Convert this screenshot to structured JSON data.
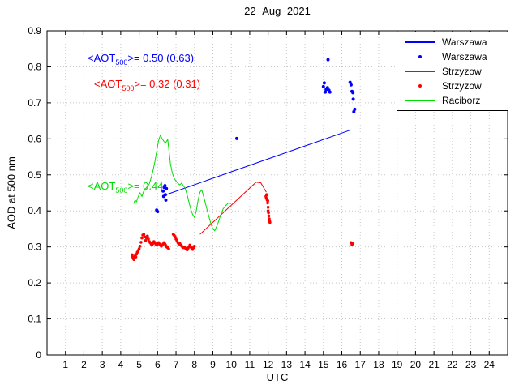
{
  "chart_data": {
    "type": "line+scatter",
    "title": "22−Aug−2021",
    "xlabel": "UTC",
    "ylabel": "AOD at 500 nm",
    "xlim": [
      0,
      25
    ],
    "ylim": [
      0,
      0.9
    ],
    "xticks": [
      1,
      2,
      3,
      4,
      5,
      6,
      7,
      8,
      9,
      10,
      11,
      12,
      13,
      14,
      15,
      16,
      17,
      18,
      19,
      20,
      21,
      22,
      23,
      24
    ],
    "yticks": [
      0,
      0.1,
      0.2,
      0.3,
      0.4,
      0.5,
      0.6,
      0.7,
      0.8,
      0.9
    ],
    "ytick_labels": [
      "0",
      "0.1",
      "0.2",
      "0.3",
      "0.4",
      "0.5",
      "0.6",
      "0.7",
      "0.8",
      "0.9"
    ],
    "grid": true,
    "grid_color": "#c8c8c8",
    "axis_color": "#000000",
    "legend_position": "top-right",
    "series": [
      {
        "name": "Warszawa (fit line)",
        "type": "line",
        "color": "#0000ff",
        "points": [
          [
            6.35,
            0.443
          ],
          [
            16.5,
            0.625
          ]
        ]
      },
      {
        "name": "Warszawa (measurements)",
        "type": "scatter",
        "color": "#0000ff",
        "marker_size": 2,
        "points": [
          [
            5.95,
            0.402
          ],
          [
            6.0,
            0.398
          ],
          [
            6.3,
            0.455
          ],
          [
            6.33,
            0.44
          ],
          [
            6.36,
            0.465
          ],
          [
            6.4,
            0.47
          ],
          [
            6.42,
            0.445
          ],
          [
            6.45,
            0.43
          ],
          [
            6.48,
            0.462
          ],
          [
            10.3,
            0.601
          ],
          [
            15.0,
            0.745
          ],
          [
            15.05,
            0.755
          ],
          [
            15.1,
            0.73
          ],
          [
            15.15,
            0.737
          ],
          [
            15.22,
            0.742
          ],
          [
            15.25,
            0.82
          ],
          [
            15.3,
            0.735
          ],
          [
            15.35,
            0.73
          ],
          [
            16.45,
            0.757
          ],
          [
            16.5,
            0.75
          ],
          [
            16.55,
            0.732
          ],
          [
            16.6,
            0.728
          ],
          [
            16.62,
            0.71
          ],
          [
            16.65,
            0.675
          ],
          [
            16.7,
            0.682
          ]
        ]
      },
      {
        "name": "Strzyzow (line)",
        "type": "line",
        "color": "#ff0000",
        "points": [
          [
            8.3,
            0.335
          ],
          [
            11.35,
            0.48
          ],
          [
            11.6,
            0.478
          ],
          [
            11.9,
            0.452
          ]
        ]
      },
      {
        "name": "Strzyzow (measurements)",
        "type": "scatter",
        "color": "#ff0000",
        "marker_size": 1.8,
        "points": [
          [
            4.62,
            0.278
          ],
          [
            4.65,
            0.272
          ],
          [
            4.68,
            0.268
          ],
          [
            4.72,
            0.265
          ],
          [
            4.75,
            0.27
          ],
          [
            4.78,
            0.275
          ],
          [
            4.82,
            0.272
          ],
          [
            4.86,
            0.28
          ],
          [
            4.9,
            0.285
          ],
          [
            4.95,
            0.29
          ],
          [
            5.0,
            0.295
          ],
          [
            5.05,
            0.302
          ],
          [
            5.1,
            0.313
          ],
          [
            5.15,
            0.325
          ],
          [
            5.2,
            0.333
          ],
          [
            5.25,
            0.335
          ],
          [
            5.3,
            0.328
          ],
          [
            5.35,
            0.318
          ],
          [
            5.4,
            0.325
          ],
          [
            5.45,
            0.33
          ],
          [
            5.5,
            0.322
          ],
          [
            5.55,
            0.315
          ],
          [
            5.6,
            0.312
          ],
          [
            5.65,
            0.308
          ],
          [
            5.7,
            0.305
          ],
          [
            5.75,
            0.31
          ],
          [
            5.8,
            0.315
          ],
          [
            5.85,
            0.312
          ],
          [
            5.9,
            0.308
          ],
          [
            5.95,
            0.305
          ],
          [
            6.0,
            0.308
          ],
          [
            6.05,
            0.312
          ],
          [
            6.1,
            0.308
          ],
          [
            6.15,
            0.305
          ],
          [
            6.2,
            0.302
          ],
          [
            6.25,
            0.305
          ],
          [
            6.3,
            0.308
          ],
          [
            6.35,
            0.312
          ],
          [
            6.4,
            0.308
          ],
          [
            6.45,
            0.304
          ],
          [
            6.5,
            0.3
          ],
          [
            6.55,
            0.298
          ],
          [
            6.6,
            0.295
          ],
          [
            6.85,
            0.335
          ],
          [
            6.9,
            0.332
          ],
          [
            6.95,
            0.328
          ],
          [
            7.0,
            0.322
          ],
          [
            7.05,
            0.318
          ],
          [
            7.1,
            0.312
          ],
          [
            7.15,
            0.308
          ],
          [
            7.2,
            0.31
          ],
          [
            7.25,
            0.306
          ],
          [
            7.3,
            0.303
          ],
          [
            7.35,
            0.3
          ],
          [
            7.4,
            0.298
          ],
          [
            7.45,
            0.3
          ],
          [
            7.5,
            0.297
          ],
          [
            7.55,
            0.294
          ],
          [
            7.6,
            0.292
          ],
          [
            7.65,
            0.296
          ],
          [
            7.7,
            0.3
          ],
          [
            7.75,
            0.305
          ],
          [
            7.8,
            0.3
          ],
          [
            7.85,
            0.296
          ],
          [
            7.9,
            0.293
          ],
          [
            7.95,
            0.298
          ],
          [
            8.0,
            0.302
          ],
          [
            11.88,
            0.44
          ],
          [
            11.9,
            0.435
          ],
          [
            11.92,
            0.445
          ],
          [
            11.95,
            0.43
          ],
          [
            11.97,
            0.422
          ],
          [
            11.98,
            0.428
          ],
          [
            12.0,
            0.41
          ],
          [
            12.0,
            0.4
          ],
          [
            12.02,
            0.395
          ],
          [
            12.04,
            0.386
          ],
          [
            12.06,
            0.378
          ],
          [
            12.08,
            0.372
          ],
          [
            12.1,
            0.368
          ],
          [
            12.05,
            0.37
          ],
          [
            16.5,
            0.312
          ],
          [
            16.55,
            0.306
          ],
          [
            16.6,
            0.31
          ]
        ]
      },
      {
        "name": "Raciborz (line)",
        "type": "line",
        "color": "#00dd00",
        "points": [
          [
            4.7,
            0.42
          ],
          [
            4.78,
            0.43
          ],
          [
            4.85,
            0.425
          ],
          [
            4.95,
            0.44
          ],
          [
            5.05,
            0.45
          ],
          [
            5.15,
            0.44
          ],
          [
            5.25,
            0.455
          ],
          [
            5.4,
            0.465
          ],
          [
            5.55,
            0.475
          ],
          [
            5.7,
            0.5
          ],
          [
            5.85,
            0.535
          ],
          [
            5.95,
            0.565
          ],
          [
            6.05,
            0.595
          ],
          [
            6.15,
            0.61
          ],
          [
            6.25,
            0.6
          ],
          [
            6.35,
            0.592
          ],
          [
            6.45,
            0.59
          ],
          [
            6.55,
            0.598
          ],
          [
            6.6,
            0.575
          ],
          [
            6.7,
            0.53
          ],
          [
            6.8,
            0.505
          ],
          [
            6.9,
            0.49
          ],
          [
            7.0,
            0.483
          ],
          [
            7.1,
            0.477
          ],
          [
            7.2,
            0.472
          ],
          [
            7.3,
            0.477
          ],
          [
            7.4,
            0.47
          ],
          [
            7.5,
            0.462
          ],
          [
            7.6,
            0.445
          ],
          [
            7.7,
            0.425
          ],
          [
            7.8,
            0.405
          ],
          [
            7.9,
            0.39
          ],
          [
            8.0,
            0.382
          ],
          [
            8.1,
            0.4
          ],
          [
            8.2,
            0.43
          ],
          [
            8.3,
            0.452
          ],
          [
            8.4,
            0.458
          ],
          [
            8.5,
            0.44
          ],
          [
            8.6,
            0.42
          ],
          [
            8.7,
            0.4
          ],
          [
            8.8,
            0.382
          ],
          [
            8.9,
            0.363
          ],
          [
            9.0,
            0.35
          ],
          [
            9.1,
            0.345
          ],
          [
            9.25,
            0.362
          ],
          [
            9.4,
            0.385
          ],
          [
            9.55,
            0.405
          ],
          [
            9.7,
            0.415
          ],
          [
            9.85,
            0.422
          ],
          [
            10.0,
            0.42
          ]
        ]
      }
    ]
  },
  "annotations": [
    {
      "prefix": "<AOT",
      "sub": "500",
      "suffix": ">= 0.50 (0.63)",
      "color": "#0000ff"
    },
    {
      "prefix": "<AOT",
      "sub": "500",
      "suffix": ">= 0.32 (0.31)",
      "color": "#ff0000"
    },
    {
      "prefix": "<AOT",
      "sub": "500",
      "suffix": ">= 0.44",
      "color": "#00dd00"
    }
  ],
  "legend": [
    {
      "label": "Warszawa",
      "color": "#0000ff",
      "sample": "line"
    },
    {
      "label": "Warszawa",
      "color": "#0000ff",
      "sample": "dot"
    },
    {
      "label": "Strzyzow",
      "color": "#ff0000",
      "sample": "line"
    },
    {
      "label": "Strzyzow",
      "color": "#ff0000",
      "sample": "dot"
    },
    {
      "label": "Raciborz",
      "color": "#00dd00",
      "sample": "line"
    }
  ]
}
